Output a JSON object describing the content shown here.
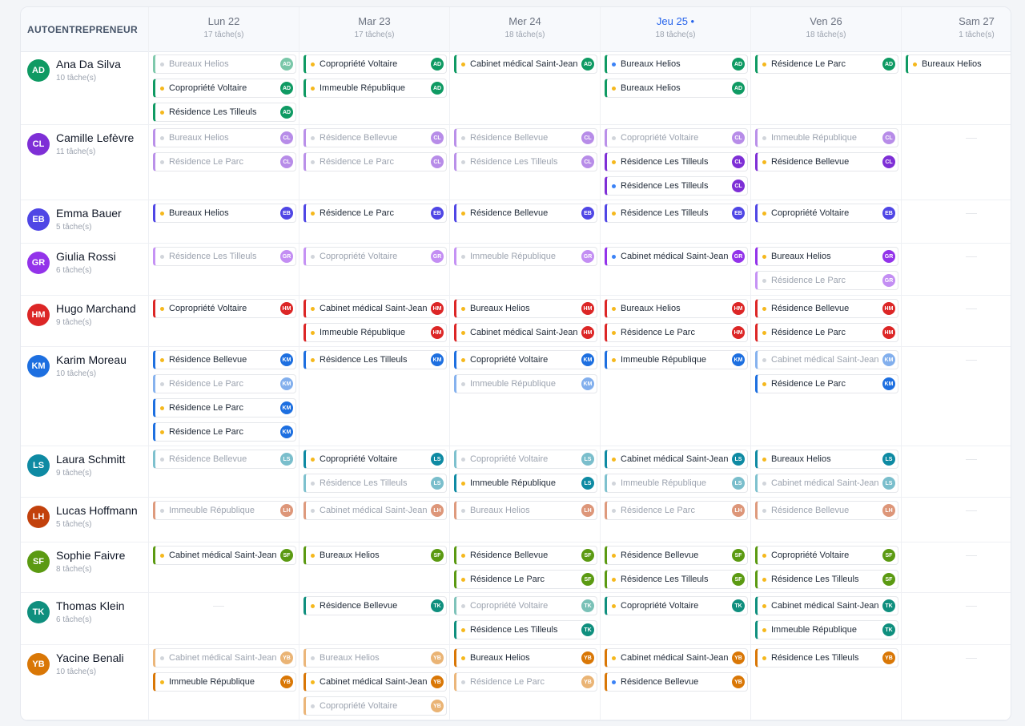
{
  "header": {
    "corner_label": "AUTOENTREPRENEUR"
  },
  "days": [
    {
      "name": "Lun 22",
      "count": "17 tâche(s)",
      "today": false
    },
    {
      "name": "Mar 23",
      "count": "17 tâche(s)",
      "today": false
    },
    {
      "name": "Mer 24",
      "count": "18 tâche(s)",
      "today": false
    },
    {
      "name": "Jeu 25",
      "count": "18 tâche(s)",
      "today": true
    },
    {
      "name": "Ven 26",
      "count": "18 tâche(s)",
      "today": false
    },
    {
      "name": "Sam 27",
      "count": "1 tâche(s)",
      "today": false
    }
  ],
  "status_colors": {
    "active": "#f5b81d",
    "done": "#d1d5db",
    "in_progress": "#3b82f6"
  },
  "workers": [
    {
      "initials": "AD",
      "name": "Ana Da Silva",
      "count": "10 tâche(s)",
      "color": "#0f9a63",
      "days": [
        [
          {
            "t": "Bureaux Helios",
            "s": "done"
          },
          {
            "t": "Copropriété Voltaire",
            "s": "active"
          },
          {
            "t": "Résidence Les Tilleuls",
            "s": "active"
          }
        ],
        [
          {
            "t": "Copropriété Voltaire",
            "s": "active"
          },
          {
            "t": "Immeuble République",
            "s": "active"
          }
        ],
        [
          {
            "t": "Cabinet médical Saint-Jean",
            "s": "active"
          }
        ],
        [
          {
            "t": "Bureaux Helios",
            "s": "in_progress"
          },
          {
            "t": "Bureaux Helios",
            "s": "active"
          }
        ],
        [
          {
            "t": "Résidence Le Parc",
            "s": "active"
          }
        ],
        [
          {
            "t": "Bureaux Helios",
            "s": "active"
          }
        ]
      ]
    },
    {
      "initials": "CL",
      "name": "Camille Lefèvre",
      "count": "11 tâche(s)",
      "color": "#7e2fd6",
      "days": [
        [
          {
            "t": "Bureaux Helios",
            "s": "done"
          },
          {
            "t": "Résidence Le Parc",
            "s": "done"
          }
        ],
        [
          {
            "t": "Résidence Bellevue",
            "s": "done"
          },
          {
            "t": "Résidence Le Parc",
            "s": "done"
          }
        ],
        [
          {
            "t": "Résidence Bellevue",
            "s": "done"
          },
          {
            "t": "Résidence Les Tilleuls",
            "s": "done"
          }
        ],
        [
          {
            "t": "Copropriété Voltaire",
            "s": "done"
          },
          {
            "t": "Résidence Les Tilleuls",
            "s": "active"
          },
          {
            "t": "Résidence Les Tilleuls",
            "s": "in_progress"
          }
        ],
        [
          {
            "t": "Immeuble République",
            "s": "done"
          },
          {
            "t": "Résidence Bellevue",
            "s": "active"
          }
        ],
        []
      ]
    },
    {
      "initials": "EB",
      "name": "Emma Bauer",
      "count": "5 tâche(s)",
      "color": "#4f46e5",
      "days": [
        [
          {
            "t": "Bureaux Helios",
            "s": "active"
          }
        ],
        [
          {
            "t": "Résidence Le Parc",
            "s": "active"
          }
        ],
        [
          {
            "t": "Résidence Bellevue",
            "s": "active"
          }
        ],
        [
          {
            "t": "Résidence Les Tilleuls",
            "s": "active"
          }
        ],
        [
          {
            "t": "Copropriété Voltaire",
            "s": "active"
          }
        ],
        []
      ]
    },
    {
      "initials": "GR",
      "name": "Giulia Rossi",
      "count": "6 tâche(s)",
      "color": "#9333ea",
      "days": [
        [
          {
            "t": "Résidence Les Tilleuls",
            "s": "done"
          }
        ],
        [
          {
            "t": "Copropriété Voltaire",
            "s": "done"
          }
        ],
        [
          {
            "t": "Immeuble République",
            "s": "done"
          }
        ],
        [
          {
            "t": "Cabinet médical Saint-Jean",
            "s": "in_progress"
          }
        ],
        [
          {
            "t": "Bureaux Helios",
            "s": "active"
          },
          {
            "t": "Résidence Le Parc",
            "s": "done"
          }
        ],
        []
      ]
    },
    {
      "initials": "HM",
      "name": "Hugo Marchand",
      "count": "9 tâche(s)",
      "color": "#dc2626",
      "days": [
        [
          {
            "t": "Copropriété Voltaire",
            "s": "active"
          }
        ],
        [
          {
            "t": "Cabinet médical Saint-Jean",
            "s": "active"
          },
          {
            "t": "Immeuble République",
            "s": "active"
          }
        ],
        [
          {
            "t": "Bureaux Helios",
            "s": "active"
          },
          {
            "t": "Cabinet médical Saint-Jean",
            "s": "active"
          }
        ],
        [
          {
            "t": "Bureaux Helios",
            "s": "active"
          },
          {
            "t": "Résidence Le Parc",
            "s": "active"
          }
        ],
        [
          {
            "t": "Résidence Bellevue",
            "s": "active"
          },
          {
            "t": "Résidence Le Parc",
            "s": "active"
          }
        ],
        []
      ]
    },
    {
      "initials": "KM",
      "name": "Karim Moreau",
      "count": "10 tâche(s)",
      "color": "#1d6fe0",
      "days": [
        [
          {
            "t": "Résidence Bellevue",
            "s": "active"
          },
          {
            "t": "Résidence Le Parc",
            "s": "done"
          },
          {
            "t": "Résidence Le Parc",
            "s": "active"
          },
          {
            "t": "Résidence Le Parc",
            "s": "active"
          }
        ],
        [
          {
            "t": "Résidence Les Tilleuls",
            "s": "active"
          }
        ],
        [
          {
            "t": "Copropriété Voltaire",
            "s": "active"
          },
          {
            "t": "Immeuble République",
            "s": "done"
          }
        ],
        [
          {
            "t": "Immeuble République",
            "s": "active"
          }
        ],
        [
          {
            "t": "Cabinet médical Saint-Jean",
            "s": "done"
          },
          {
            "t": "Résidence Le Parc",
            "s": "active"
          }
        ],
        []
      ]
    },
    {
      "initials": "LS",
      "name": "Laura Schmitt",
      "count": "9 tâche(s)",
      "color": "#0e8aa3",
      "days": [
        [
          {
            "t": "Résidence Bellevue",
            "s": "done"
          }
        ],
        [
          {
            "t": "Copropriété Voltaire",
            "s": "active"
          },
          {
            "t": "Résidence Les Tilleuls",
            "s": "done"
          }
        ],
        [
          {
            "t": "Copropriété Voltaire",
            "s": "done"
          },
          {
            "t": "Immeuble République",
            "s": "active"
          }
        ],
        [
          {
            "t": "Cabinet médical Saint-Jean",
            "s": "active"
          },
          {
            "t": "Immeuble République",
            "s": "done"
          }
        ],
        [
          {
            "t": "Bureaux Helios",
            "s": "active"
          },
          {
            "t": "Cabinet médical Saint-Jean",
            "s": "done"
          }
        ],
        []
      ]
    },
    {
      "initials": "LH",
      "name": "Lucas Hoffmann",
      "count": "5 tâche(s)",
      "color": "#c2410c",
      "days": [
        [
          {
            "t": "Immeuble République",
            "s": "done"
          }
        ],
        [
          {
            "t": "Cabinet médical Saint-Jean",
            "s": "done"
          }
        ],
        [
          {
            "t": "Bureaux Helios",
            "s": "done"
          }
        ],
        [
          {
            "t": "Résidence Le Parc",
            "s": "done"
          }
        ],
        [
          {
            "t": "Résidence Bellevue",
            "s": "done"
          }
        ],
        []
      ]
    },
    {
      "initials": "SF",
      "name": "Sophie Faivre",
      "count": "8 tâche(s)",
      "color": "#5b9a12",
      "days": [
        [
          {
            "t": "Cabinet médical Saint-Jean",
            "s": "active"
          }
        ],
        [
          {
            "t": "Bureaux Helios",
            "s": "active"
          }
        ],
        [
          {
            "t": "Résidence Bellevue",
            "s": "active"
          },
          {
            "t": "Résidence Le Parc",
            "s": "active"
          }
        ],
        [
          {
            "t": "Résidence Bellevue",
            "s": "active"
          },
          {
            "t": "Résidence Les Tilleuls",
            "s": "active"
          }
        ],
        [
          {
            "t": "Copropriété Voltaire",
            "s": "active"
          },
          {
            "t": "Résidence Les Tilleuls",
            "s": "active"
          }
        ],
        []
      ]
    },
    {
      "initials": "TK",
      "name": "Thomas Klein",
      "count": "6 tâche(s)",
      "color": "#0f8f7e",
      "days": [
        [],
        [
          {
            "t": "Résidence Bellevue",
            "s": "active"
          }
        ],
        [
          {
            "t": "Copropriété Voltaire",
            "s": "done"
          },
          {
            "t": "Résidence Les Tilleuls",
            "s": "active"
          }
        ],
        [
          {
            "t": "Copropriété Voltaire",
            "s": "active"
          }
        ],
        [
          {
            "t": "Cabinet médical Saint-Jean",
            "s": "active"
          },
          {
            "t": "Immeuble République",
            "s": "active"
          }
        ],
        []
      ]
    },
    {
      "initials": "YB",
      "name": "Yacine Benali",
      "count": "10 tâche(s)",
      "color": "#d97706",
      "days": [
        [
          {
            "t": "Cabinet médical Saint-Jean",
            "s": "done"
          },
          {
            "t": "Immeuble République",
            "s": "active"
          }
        ],
        [
          {
            "t": "Bureaux Helios",
            "s": "done"
          },
          {
            "t": "Cabinet médical Saint-Jean",
            "s": "active"
          },
          {
            "t": "Copropriété Voltaire",
            "s": "done"
          }
        ],
        [
          {
            "t": "Bureaux Helios",
            "s": "active"
          },
          {
            "t": "Résidence Le Parc",
            "s": "done"
          }
        ],
        [
          {
            "t": "Cabinet médical Saint-Jean",
            "s": "active"
          },
          {
            "t": "Résidence Bellevue",
            "s": "in_progress"
          }
        ],
        [
          {
            "t": "Résidence Les Tilleuls",
            "s": "active"
          }
        ],
        []
      ]
    }
  ]
}
